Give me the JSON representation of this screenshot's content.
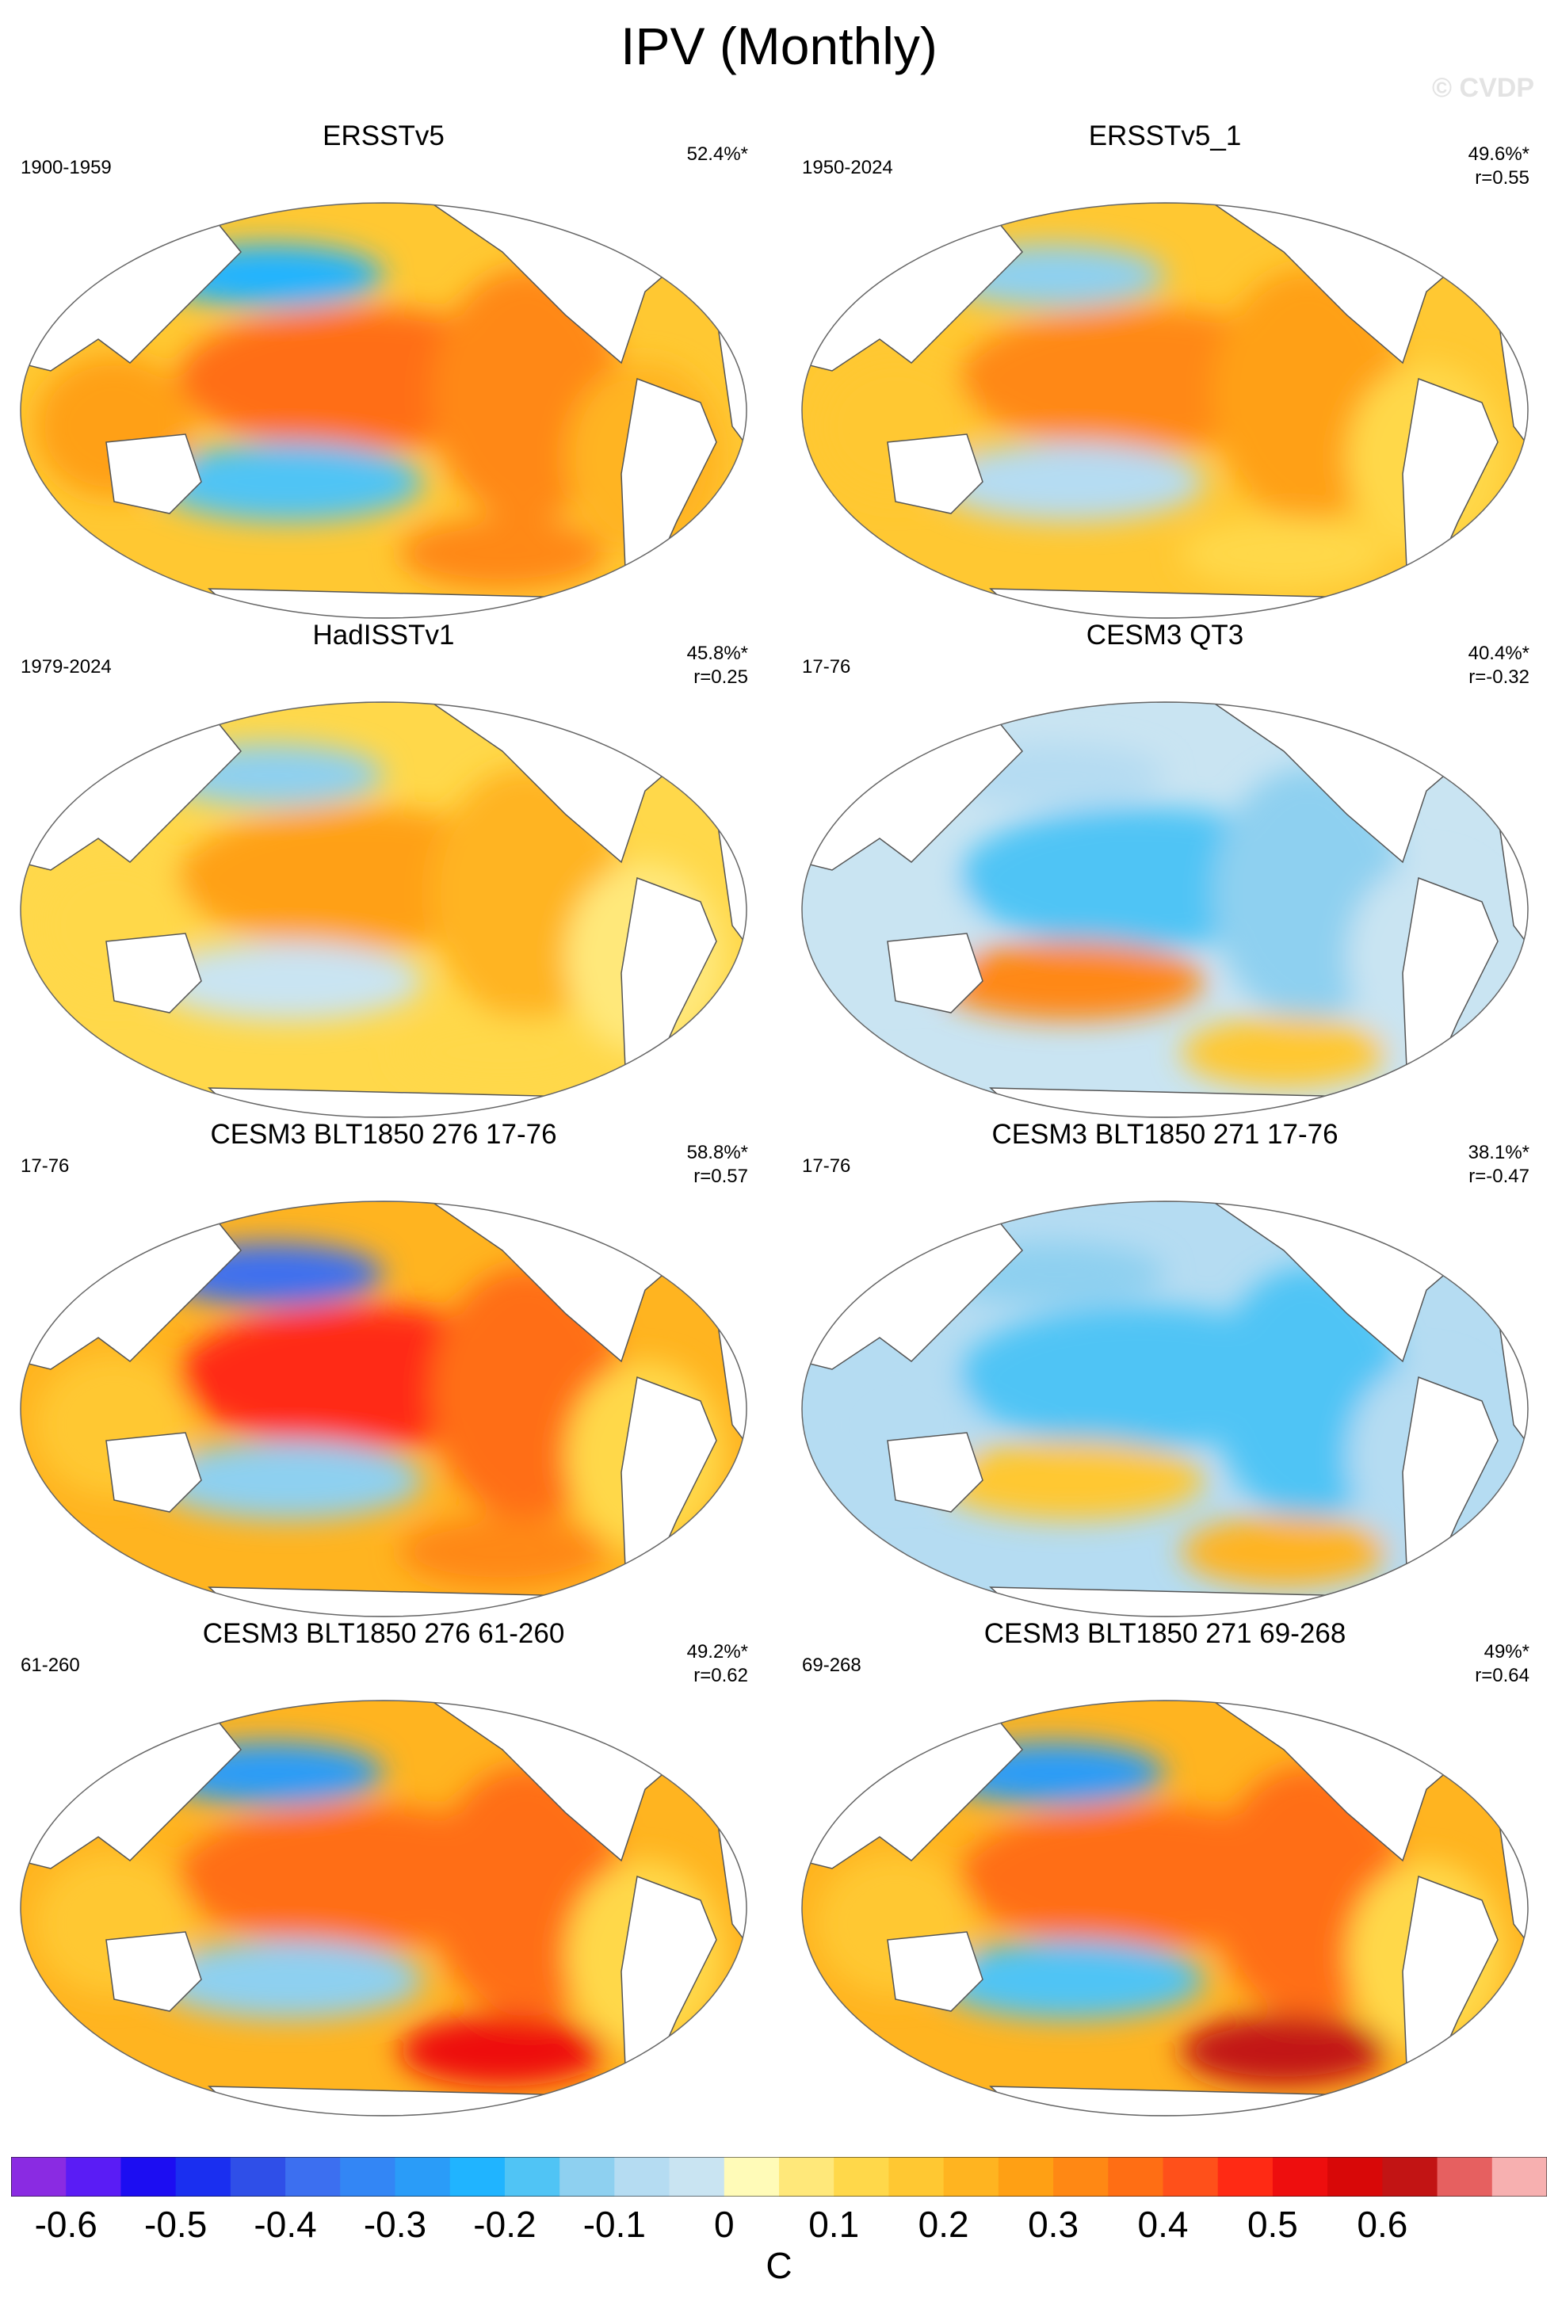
{
  "title": "IPV (Monthly)",
  "watermark": "© CVDP",
  "panels": [
    {
      "title": "ERSSTv5",
      "period": "1900-1959",
      "pct": "52.4%*",
      "r": "",
      "pattern": [
        0.25,
        -0.3,
        0.3,
        0.2,
        -0.25,
        0.25
      ]
    },
    {
      "title": "ERSSTv5_1",
      "period": "1950-2024",
      "pct": "49.6%*",
      "r": "r=0.55",
      "pattern": [
        0.2,
        -0.2,
        0.25,
        0.1,
        -0.15,
        0.05
      ]
    },
    {
      "title": "HadISSTv1",
      "period": "1979-2024",
      "pct": "45.8%*",
      "r": "r=0.25",
      "pattern": [
        0.15,
        -0.2,
        0.2,
        0.05,
        -0.1,
        0.05
      ]
    },
    {
      "title": "CESM3 QT3",
      "period": "17-76",
      "pct": "40.4%*",
      "r": "r=-0.32",
      "pattern": [
        -0.2,
        -0.15,
        -0.25,
        -0.1,
        0.25,
        0.1
      ]
    },
    {
      "title": "CESM3 BLT1850 276 17-76",
      "period": "17-76",
      "pct": "58.8%*",
      "r": "r=0.57",
      "pattern": [
        0.3,
        -0.4,
        0.4,
        0.1,
        -0.2,
        0.25
      ]
    },
    {
      "title": "CESM3 BLT1850 271 17-76",
      "period": "17-76",
      "pct": "38.1%*",
      "r": "r=-0.47",
      "pattern": [
        -0.25,
        -0.2,
        -0.25,
        -0.15,
        0.1,
        0.15
      ]
    },
    {
      "title": "CESM3 BLT1850 276 61-260",
      "period": "61-260",
      "pct": "49.2%*",
      "r": "r=0.62",
      "pattern": [
        0.35,
        -0.35,
        0.35,
        0.1,
        -0.2,
        0.45
      ]
    },
    {
      "title": "CESM3 BLT1850 271 69-268",
      "period": "69-268",
      "pct": "49%*",
      "r": "r=0.64",
      "pattern": [
        0.35,
        -0.35,
        0.35,
        0.1,
        -0.25,
        0.55
      ]
    }
  ],
  "colorbar": {
    "colors": [
      "#8a2be2",
      "#5a1cf5",
      "#1c0df2",
      "#1a2ff0",
      "#2f4fe8",
      "#3c6ff0",
      "#3386f5",
      "#2a9cf8",
      "#20b4ff",
      "#50c4f5",
      "#8ed0f0",
      "#b5dcf2",
      "#c9e4f2",
      "#fffbb8",
      "#ffe87a",
      "#ffd84a",
      "#ffc832",
      "#ffb420",
      "#ffa014",
      "#ff8814",
      "#ff6e14",
      "#ff501a",
      "#ff2a14",
      "#ee0e0e",
      "#d80808",
      "#c21414",
      "#e66060",
      "#f7b0b0"
    ],
    "labels": [
      "-0.6",
      "-0.5",
      "-0.4",
      "-0.3",
      "-0.2",
      "-0.1",
      "0",
      "0.1",
      "0.2",
      "0.3",
      "0.4",
      "0.5",
      "0.6"
    ],
    "units": "C"
  }
}
